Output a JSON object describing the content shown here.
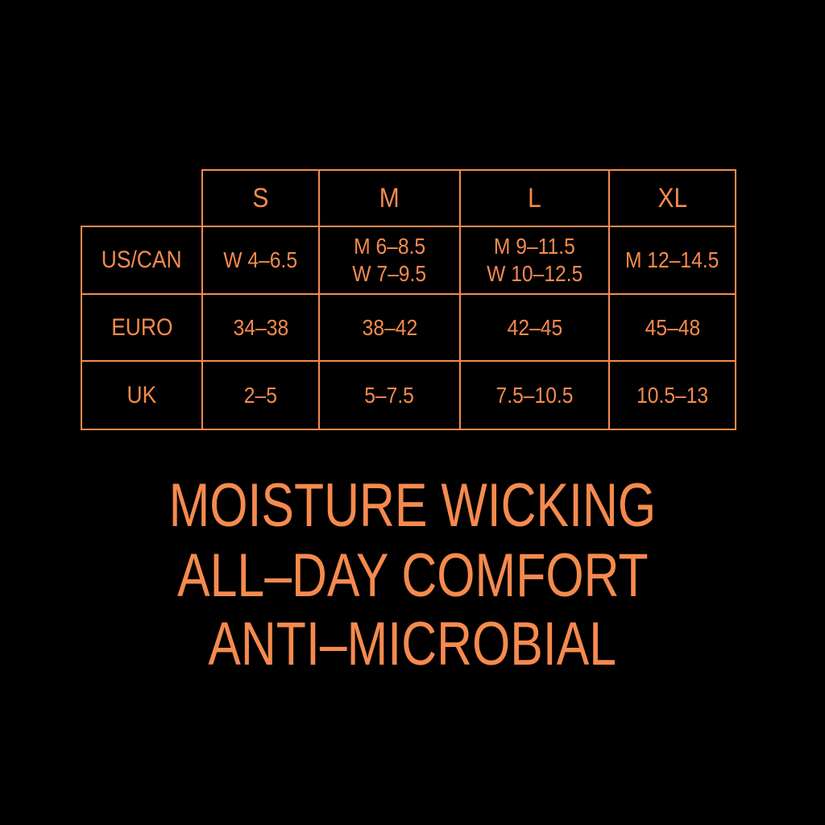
{
  "accent_color": "#f58a4e",
  "background_color": "#000000",
  "size_table": {
    "columns": [
      "S",
      "M",
      "L",
      "XL"
    ],
    "rows": [
      {
        "label": "US/CAN",
        "cells": [
          [
            "W 4–6.5"
          ],
          [
            "M 6–8.5",
            "W 7–9.5"
          ],
          [
            "M 9–11.5",
            "W 10–12.5"
          ],
          [
            "M 12–14.5"
          ]
        ]
      },
      {
        "label": "EURO",
        "cells": [
          [
            "34–38"
          ],
          [
            "38–42"
          ],
          [
            "42–45"
          ],
          [
            "45–48"
          ]
        ]
      },
      {
        "label": "UK",
        "cells": [
          [
            "2–5"
          ],
          [
            "5–7.5"
          ],
          [
            "7.5–10.5"
          ],
          [
            "10.5–13"
          ]
        ]
      }
    ]
  },
  "features": [
    "MOISTURE WICKING",
    "ALL–DAY COMFORT",
    "ANTI–MICROBIAL"
  ]
}
